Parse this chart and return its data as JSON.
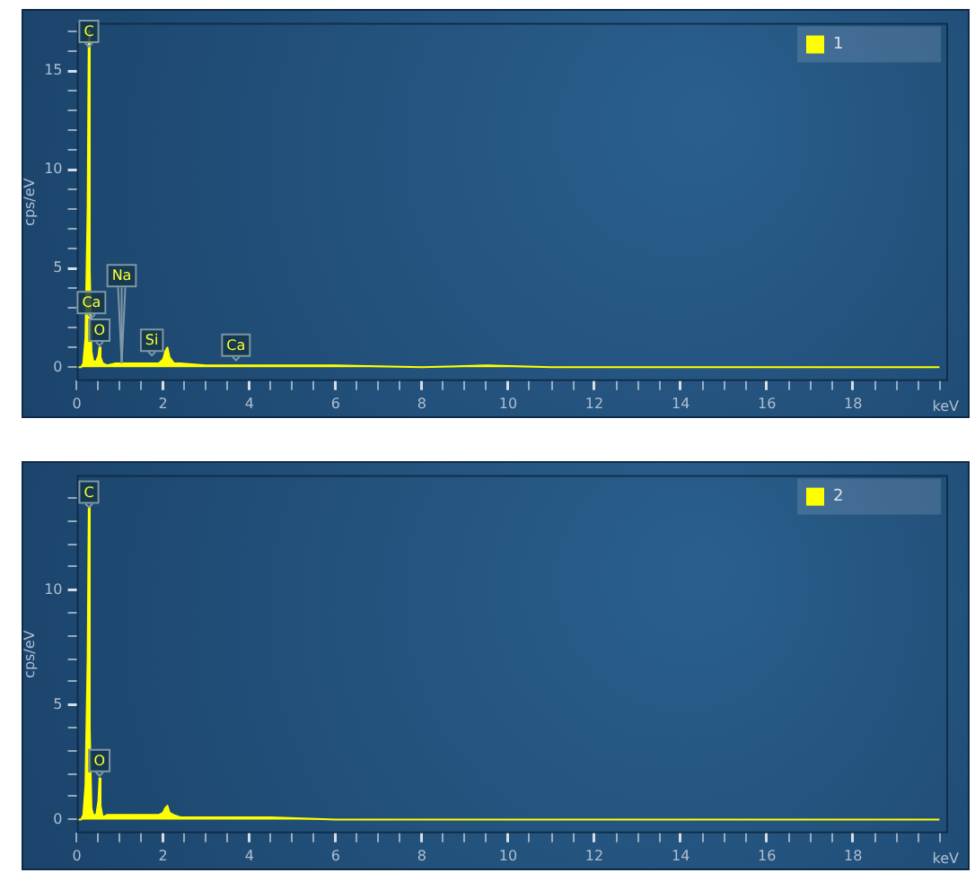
{
  "chart_data": [
    {
      "type": "area",
      "xlabel": "keV",
      "ylabel": "cps/eV",
      "legend": "top right",
      "grid": false,
      "marker": "none",
      "xlim": [
        0,
        20.2
      ],
      "ylim": [
        -0.7,
        17.4
      ],
      "xticks": [
        0,
        {
          "value": 0.5,
          "label": null
        },
        {
          "value": 1,
          "label": null
        },
        {
          "value": 1.5,
          "label": null
        },
        2,
        {
          "value": 2.5,
          "label": null
        },
        {
          "value": 3,
          "label": null
        },
        {
          "value": 3.5,
          "label": null
        },
        4,
        {
          "value": 4.5,
          "label": null
        },
        {
          "value": 5,
          "label": null
        },
        {
          "value": 5.5,
          "label": null
        },
        6,
        {
          "value": 6.5,
          "label": null
        },
        {
          "value": 7,
          "label": null
        },
        {
          "value": 7.5,
          "label": null
        },
        8,
        {
          "value": 8.5,
          "label": null
        },
        {
          "value": 9,
          "label": null
        },
        {
          "value": 9.5,
          "label": null
        },
        10,
        {
          "value": 10.5,
          "label": null
        },
        {
          "value": 11,
          "label": null
        },
        {
          "value": 11.5,
          "label": null
        },
        12,
        {
          "value": 12.5,
          "label": null
        },
        {
          "value": 13,
          "label": null
        },
        {
          "value": 13.5,
          "label": null
        },
        14,
        {
          "value": 14.5,
          "label": null
        },
        {
          "value": 15,
          "label": null
        },
        {
          "value": 15.5,
          "label": null
        },
        16,
        {
          "value": 16.5,
          "label": null
        },
        {
          "value": 17,
          "label": null
        },
        {
          "value": 17.5,
          "label": null
        },
        18,
        {
          "value": 18.5,
          "label": null
        },
        {
          "value": 19,
          "label": null
        },
        {
          "value": 19.5,
          "label": null
        },
        {
          "value": 20,
          "label": null
        }
      ],
      "yticks": [
        0,
        {
          "value": 1,
          "label": null
        },
        {
          "value": 2,
          "label": null
        },
        {
          "value": 3,
          "label": null
        },
        {
          "value": 4,
          "label": null
        },
        5,
        {
          "value": 6,
          "label": null
        },
        {
          "value": 7,
          "label": null
        },
        {
          "value": 8,
          "label": null
        },
        {
          "value": 9,
          "label": null
        },
        10,
        {
          "value": 11,
          "label": null
        },
        {
          "value": 12,
          "label": null
        },
        {
          "value": 13,
          "label": null
        },
        {
          "value": 14,
          "label": null
        },
        15,
        {
          "value": 16,
          "label": null
        },
        {
          "value": 17,
          "label": null
        }
      ],
      "x": [
        0,
        0.1,
        0.15,
        0.2,
        0.25,
        0.277,
        0.3,
        0.34,
        0.38,
        0.45,
        0.5,
        0.525,
        0.55,
        0.6,
        0.7,
        0.9,
        1.04,
        1.2,
        1.5,
        1.74,
        1.9,
        2.0,
        2.05,
        2.1,
        2.15,
        2.25,
        2.4,
        3,
        3.69,
        4.5,
        6,
        8,
        9.5,
        11,
        12,
        14,
        16,
        18,
        20
      ],
      "series": [
        {
          "name": "1",
          "color": "#ffff00",
          "values": [
            0,
            0,
            0.2,
            1.5,
            8,
            17,
            5,
            0.8,
            0.3,
            0.3,
            0.6,
            1.0,
            0.5,
            0.2,
            0.1,
            0.2,
            0.2,
            0.2,
            0.2,
            0.2,
            0.2,
            0.4,
            0.8,
            1.0,
            0.5,
            0.2,
            0.2,
            0.1,
            0.1,
            0.1,
            0.1,
            0,
            0.1,
            0,
            0,
            0,
            0,
            0,
            0
          ]
        }
      ],
      "annotations": [
        {
          "text": "C",
          "x": 0.28,
          "y": 16.2
        },
        {
          "text": "Ca",
          "x": 0.34,
          "y": 2.5
        },
        {
          "text": "O",
          "x": 0.525,
          "y": 1.1
        },
        {
          "text": "Na",
          "x": 1.04,
          "y": 0.2
        },
        {
          "text": "Si",
          "x": 1.74,
          "y": 0.6
        },
        {
          "text": "Ca",
          "x": 3.69,
          "y": 0.35
        }
      ]
    },
    {
      "type": "area",
      "xlabel": "keV",
      "ylabel": "cps/eV",
      "legend": "top right",
      "grid": false,
      "marker": "none",
      "xlim": [
        0,
        20.2
      ],
      "ylim": [
        -0.6,
        15
      ],
      "xticks": [
        0,
        {
          "value": 0.5,
          "label": null
        },
        {
          "value": 1,
          "label": null
        },
        {
          "value": 1.5,
          "label": null
        },
        2,
        {
          "value": 2.5,
          "label": null
        },
        {
          "value": 3,
          "label": null
        },
        {
          "value": 3.5,
          "label": null
        },
        4,
        {
          "value": 4.5,
          "label": null
        },
        {
          "value": 5,
          "label": null
        },
        {
          "value": 5.5,
          "label": null
        },
        6,
        {
          "value": 6.5,
          "label": null
        },
        {
          "value": 7,
          "label": null
        },
        {
          "value": 7.5,
          "label": null
        },
        8,
        {
          "value": 8.5,
          "label": null
        },
        {
          "value": 9,
          "label": null
        },
        {
          "value": 9.5,
          "label": null
        },
        10,
        {
          "value": 10.5,
          "label": null
        },
        {
          "value": 11,
          "label": null
        },
        {
          "value": 11.5,
          "label": null
        },
        12,
        {
          "value": 12.5,
          "label": null
        },
        {
          "value": 13,
          "label": null
        },
        {
          "value": 13.5,
          "label": null
        },
        14,
        {
          "value": 14.5,
          "label": null
        },
        {
          "value": 15,
          "label": null
        },
        {
          "value": 15.5,
          "label": null
        },
        16,
        {
          "value": 16.5,
          "label": null
        },
        {
          "value": 17,
          "label": null
        },
        {
          "value": 17.5,
          "label": null
        },
        18,
        {
          "value": 18.5,
          "label": null
        },
        {
          "value": 19,
          "label": null
        },
        {
          "value": 19.5,
          "label": null
        },
        {
          "value": 20,
          "label": null
        }
      ],
      "yticks": [
        0,
        {
          "value": 1,
          "label": null
        },
        {
          "value": 2,
          "label": null
        },
        {
          "value": 3,
          "label": null
        },
        {
          "value": 4,
          "label": null
        },
        5,
        {
          "value": 6,
          "label": null
        },
        {
          "value": 7,
          "label": null
        },
        {
          "value": 8,
          "label": null
        },
        {
          "value": 9,
          "label": null
        },
        10,
        {
          "value": 11,
          "label": null
        },
        {
          "value": 12,
          "label": null
        },
        {
          "value": 13,
          "label": null
        },
        {
          "value": 14,
          "label": null
        }
      ],
      "x": [
        0,
        0.1,
        0.15,
        0.2,
        0.25,
        0.277,
        0.3,
        0.34,
        0.38,
        0.45,
        0.5,
        0.525,
        0.55,
        0.6,
        0.7,
        0.9,
        1.04,
        1.2,
        1.5,
        1.74,
        1.9,
        2.0,
        2.05,
        2.1,
        2.15,
        2.25,
        2.4,
        3,
        3.69,
        4.5,
        6,
        8,
        9.5,
        11,
        12,
        14,
        16,
        18,
        20
      ],
      "series": [
        {
          "name": "2",
          "color": "#ffff00",
          "values": [
            0,
            0,
            0.2,
            1.5,
            7,
            13.6,
            4,
            0.5,
            0.2,
            0.2,
            0.8,
            1.8,
            0.6,
            0.1,
            0.2,
            0.2,
            0.2,
            0.2,
            0.2,
            0.2,
            0.2,
            0.3,
            0.5,
            0.6,
            0.3,
            0.2,
            0.1,
            0.1,
            0.1,
            0.1,
            0,
            0,
            0,
            0,
            0,
            0,
            0,
            0,
            0
          ]
        }
      ],
      "annotations": [
        {
          "text": "C",
          "x": 0.28,
          "y": 13.6
        },
        {
          "text": "O",
          "x": 0.525,
          "y": 1.9
        }
      ]
    }
  ]
}
